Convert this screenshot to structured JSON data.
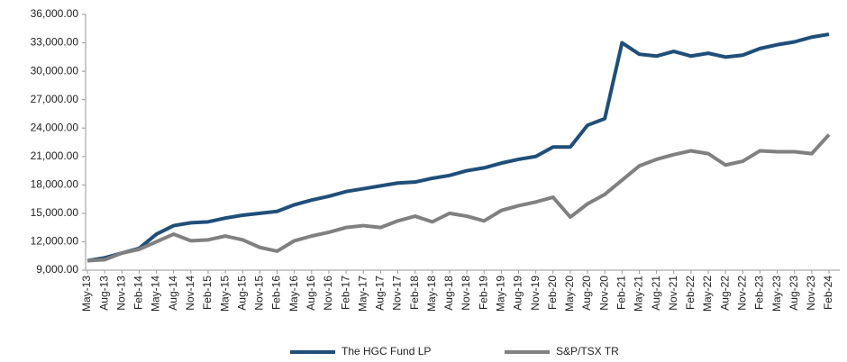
{
  "chart_data": {
    "type": "line",
    "categories": [
      "May-13",
      "Aug-13",
      "Nov-13",
      "Feb-14",
      "May-14",
      "Aug-14",
      "Nov-14",
      "Feb-15",
      "May-15",
      "Aug-15",
      "Nov-15",
      "Feb-16",
      "May-16",
      "Aug-16",
      "Nov-16",
      "Feb-17",
      "May-17",
      "Aug-17",
      "Nov-17",
      "Feb-18",
      "May-18",
      "Aug-18",
      "Nov-18",
      "Feb-19",
      "May-19",
      "Aug-19",
      "Nov-19",
      "Feb-20",
      "May-20",
      "Aug-20",
      "Nov-20",
      "Feb-21",
      "May-21",
      "Aug-21",
      "Nov-21",
      "Feb-22",
      "May-22",
      "Aug-22",
      "Nov-22",
      "Feb-23",
      "May-23",
      "Aug-23",
      "Nov-23",
      "Feb-24"
    ],
    "series": [
      {
        "name": "The HGC Fund LP",
        "color": "#1f4e79",
        "values": [
          10000,
          10300,
          10800,
          11300,
          12800,
          13700,
          14000,
          14100,
          14500,
          14800,
          15000,
          15200,
          15900,
          16400,
          16800,
          17300,
          17600,
          17900,
          18200,
          18300,
          18700,
          19000,
          19500,
          19800,
          20300,
          20700,
          21000,
          22000,
          22000,
          24300,
          25000,
          33000,
          31800,
          31600,
          32100,
          31600,
          31900,
          31500,
          31700,
          32400,
          32800,
          33100,
          33600,
          33900
        ]
      },
      {
        "name": "S&P/TSX TR",
        "color": "#808080",
        "values": [
          10000,
          10100,
          10800,
          11200,
          12000,
          12800,
          12100,
          12200,
          12600,
          12200,
          11400,
          11000,
          12100,
          12600,
          13000,
          13500,
          13700,
          13500,
          14200,
          14700,
          14100,
          15000,
          14700,
          14200,
          15300,
          15800,
          16200,
          16700,
          14600,
          16000,
          17000,
          18500,
          20000,
          20700,
          21200,
          21600,
          21300,
          20100,
          20500,
          21600,
          21500,
          21500,
          21300,
          23300
        ]
      }
    ],
    "ylim": [
      9000,
      36000
    ],
    "yticks": [
      {
        "value": 9000,
        "label": "9,000.00"
      },
      {
        "value": 12000,
        "label": "12,000.00"
      },
      {
        "value": 15000,
        "label": "15,000.00"
      },
      {
        "value": 18000,
        "label": "18,000.00"
      },
      {
        "value": 21000,
        "label": "21,000.00"
      },
      {
        "value": 24000,
        "label": "24,000.00"
      },
      {
        "value": 27000,
        "label": "27,000.00"
      },
      {
        "value": 30000,
        "label": "30,000.00"
      },
      {
        "value": 33000,
        "label": "33,000.00"
      },
      {
        "value": 36000,
        "label": "36,000.00"
      }
    ],
    "legend": "bottom"
  }
}
